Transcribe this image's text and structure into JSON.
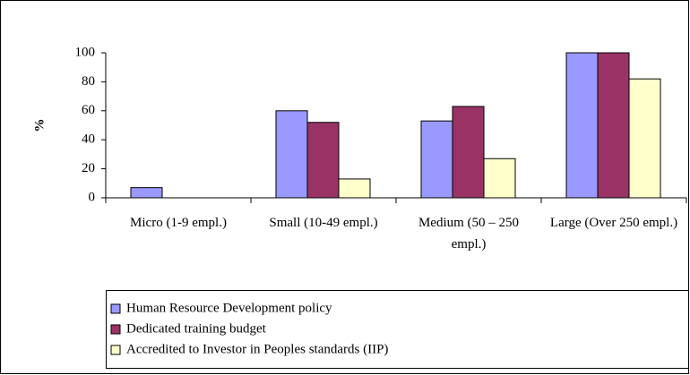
{
  "chart_data": {
    "type": "bar",
    "y_label": "%",
    "categories": [
      "Micro (1-9 empl.)",
      "Small (10-49 empl.)",
      "Medium (50 – 250 empl.)",
      "Large (Over 250 empl.)"
    ],
    "series": [
      {
        "name": "Human Resource Development policy",
        "color": "#9999ff",
        "values": [
          7,
          60,
          53,
          100
        ]
      },
      {
        "name": "Dedicated training budget",
        "color": "#993366",
        "values": [
          0,
          52,
          63,
          100
        ]
      },
      {
        "name": "Accredited to Investor in Peoples standards (IIP)",
        "color": "#ffffcc",
        "values": [
          0,
          13,
          27,
          82
        ]
      }
    ],
    "ylim": [
      0,
      100
    ],
    "yticks": [
      0,
      20,
      40,
      60,
      80,
      100
    ]
  }
}
